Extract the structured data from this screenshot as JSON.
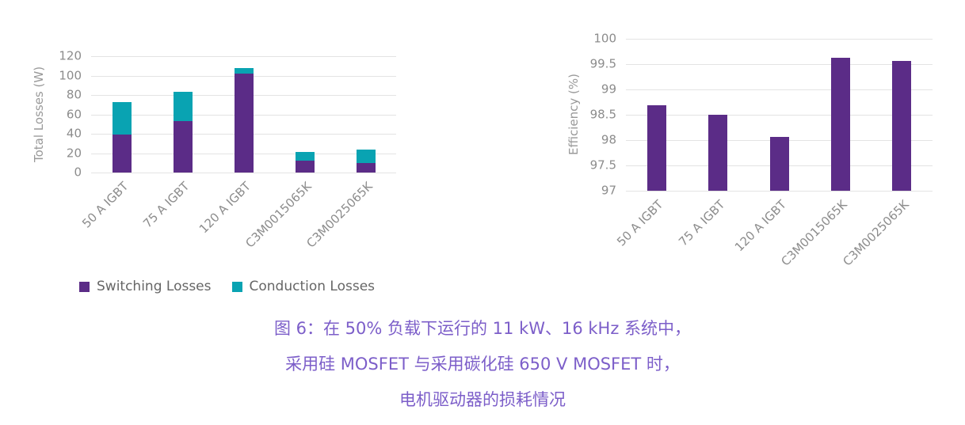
{
  "figure": {
    "caption": {
      "lines": [
        "图 6：在 50% 负载下运行的 11 kW、16 kHz 系统中，",
        "采用硅 MOSFET 与采用碳化硅 650 V MOSFET 时，",
        "电机驱动器的损耗情况"
      ],
      "color": "#7c5ec9"
    }
  },
  "chart_data": [
    {
      "type": "bar",
      "stacked": true,
      "title": "",
      "xlabel": "",
      "ylabel": "Total Losses (W)",
      "categories": [
        "50 A IGBT",
        "75 A IGBT",
        "120 A IGBT",
        "C3M0015065K",
        "C3M0025065K"
      ],
      "series": [
        {
          "name": "Switching Losses",
          "color": "#5b2c87",
          "values": [
            39,
            53,
            102,
            12,
            10
          ]
        },
        {
          "name": "Conduction Losses",
          "color": "#09a3b2",
          "values": [
            34,
            30,
            6,
            9,
            14
          ]
        }
      ],
      "ylim": [
        0,
        120
      ],
      "yticks": [
        0,
        20,
        40,
        60,
        80,
        100,
        120
      ],
      "grid": true,
      "legend_position": "bottom"
    },
    {
      "type": "bar",
      "stacked": false,
      "title": "",
      "xlabel": "",
      "ylabel": "Efficiency (%)",
      "categories": [
        "50 A IGBT",
        "75 A IGBT",
        "120 A IGBT",
        "C3M0015065K",
        "C3M0025065K"
      ],
      "series": [
        {
          "name": "Efficiency",
          "color": "#5b2c87",
          "values": [
            98.68,
            98.5,
            98.07,
            99.62,
            99.56
          ]
        }
      ],
      "ylim": [
        97,
        100
      ],
      "yticks": [
        97,
        97.5,
        98,
        98.5,
        99,
        99.5,
        100
      ],
      "grid": true,
      "legend_position": "none"
    }
  ],
  "colors": {
    "purple": "#5b2c87",
    "teal": "#09a3b2",
    "axis_text": "#8c8c8c",
    "gridline": "#e3e3e3",
    "legend_text": "#666666",
    "caption": "#7c5ec9"
  }
}
